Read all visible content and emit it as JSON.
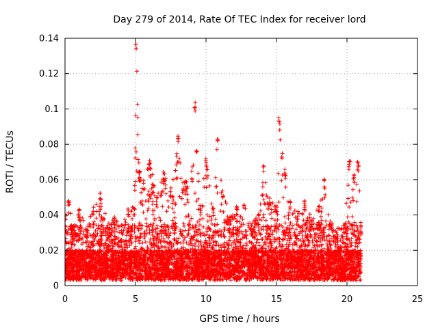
{
  "chart_data": {
    "type": "scatter",
    "title": "Day 279 of 2014, Rate Of TEC Index for receiver lord",
    "xlabel": "GPS time / hours",
    "ylabel": "ROTI / TECUs",
    "xlim": [
      0,
      25
    ],
    "ylim": [
      0,
      0.14
    ],
    "x_ticks": [
      "0",
      "5",
      "10",
      "15",
      "20",
      "25"
    ],
    "y_ticks": [
      "0",
      "0.02",
      "0.04",
      "0.06",
      "0.08",
      "0.1",
      "0.12",
      "0.14"
    ],
    "grid": true,
    "marker": "+",
    "series": [
      {
        "color": "#ff0000",
        "x_range": [
          0,
          21
        ],
        "envelope_x": [
          0,
          0.25,
          0.5,
          1,
          1.5,
          2,
          2.5,
          3,
          3.5,
          4,
          4.5,
          4.9,
          5.05,
          5.3,
          5.6,
          6,
          6.5,
          7,
          7.5,
          8,
          8.5,
          9,
          9.2,
          9.6,
          10,
          10.5,
          10.8,
          11.2,
          11.7,
          12.2,
          12.7,
          13.2,
          13.7,
          14.1,
          14.5,
          15,
          15.2,
          15.6,
          16,
          16.5,
          17,
          17.5,
          18,
          18.4,
          18.8,
          19.3,
          19.8,
          20.2,
          20.5,
          20.8,
          21
        ],
        "envelope_y": [
          0.042,
          0.05,
          0.035,
          0.045,
          0.032,
          0.045,
          0.055,
          0.035,
          0.04,
          0.035,
          0.045,
          0.045,
          0.137,
          0.065,
          0.06,
          0.072,
          0.05,
          0.065,
          0.055,
          0.085,
          0.06,
          0.065,
          0.104,
          0.045,
          0.072,
          0.048,
          0.084,
          0.055,
          0.04,
          0.045,
          0.048,
          0.035,
          0.04,
          0.068,
          0.05,
          0.045,
          0.095,
          0.065,
          0.048,
          0.042,
          0.048,
          0.038,
          0.045,
          0.061,
          0.038,
          0.03,
          0.033,
          0.074,
          0.063,
          0.073,
          0.035
        ]
      }
    ]
  }
}
